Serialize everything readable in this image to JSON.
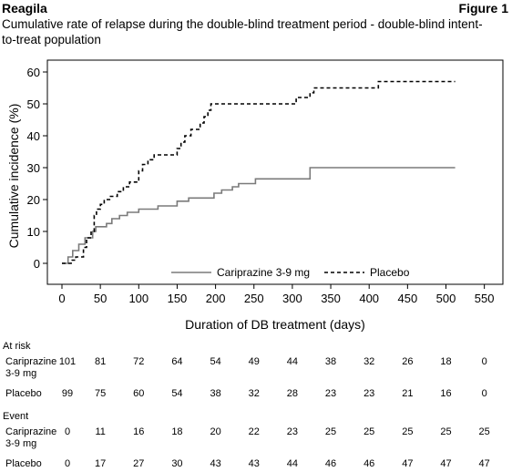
{
  "header": {
    "left": "Reagila",
    "right": "Figure 1"
  },
  "title": "Cumulative rate of relapse during the double-blind treatment period - double-blind intent-to-treat population",
  "chart_data": {
    "type": "line",
    "subtype": "step",
    "xlabel": "Duration of DB treatment (days)",
    "ylabel": "Cumulative incidence (%)",
    "xlim": [
      0,
      550
    ],
    "ylim": [
      0,
      60
    ],
    "xticks": [
      0,
      50,
      100,
      150,
      200,
      250,
      300,
      350,
      400,
      450,
      500,
      550
    ],
    "yticks": [
      0,
      10,
      20,
      30,
      40,
      50,
      60
    ],
    "legend_position": "bottom-right inside plot",
    "series": [
      {
        "name": "Cariprazine 3-9 mg",
        "style": "solid",
        "color": "#7a7a7a",
        "points": [
          [
            0,
            0
          ],
          [
            8,
            0
          ],
          [
            8,
            2
          ],
          [
            14,
            2
          ],
          [
            14,
            4
          ],
          [
            22,
            4
          ],
          [
            22,
            6
          ],
          [
            30,
            6
          ],
          [
            30,
            8
          ],
          [
            40,
            8
          ],
          [
            40,
            10
          ],
          [
            44,
            10
          ],
          [
            44,
            11.5
          ],
          [
            58,
            11.5
          ],
          [
            58,
            12.5
          ],
          [
            65,
            12.5
          ],
          [
            65,
            14
          ],
          [
            75,
            14
          ],
          [
            75,
            15
          ],
          [
            85,
            15
          ],
          [
            85,
            16
          ],
          [
            100,
            16
          ],
          [
            100,
            17
          ],
          [
            125,
            17
          ],
          [
            125,
            18
          ],
          [
            150,
            18
          ],
          [
            150,
            19.5
          ],
          [
            165,
            19.5
          ],
          [
            165,
            20.5
          ],
          [
            198,
            20.5
          ],
          [
            198,
            22
          ],
          [
            208,
            22
          ],
          [
            208,
            23
          ],
          [
            222,
            23
          ],
          [
            222,
            24
          ],
          [
            230,
            24
          ],
          [
            230,
            25
          ],
          [
            252,
            25
          ],
          [
            252,
            26.5
          ],
          [
            323,
            26.5
          ],
          [
            323,
            30
          ],
          [
            512,
            30
          ]
        ]
      },
      {
        "name": "Placebo",
        "style": "dashed",
        "color": "#000000",
        "points": [
          [
            0,
            0
          ],
          [
            12,
            0
          ],
          [
            12,
            1
          ],
          [
            18,
            1
          ],
          [
            18,
            2
          ],
          [
            28,
            2
          ],
          [
            28,
            5
          ],
          [
            32,
            5
          ],
          [
            32,
            8
          ],
          [
            38,
            8
          ],
          [
            38,
            10
          ],
          [
            42,
            10
          ],
          [
            42,
            15
          ],
          [
            45,
            15
          ],
          [
            45,
            17
          ],
          [
            50,
            17
          ],
          [
            50,
            18.5
          ],
          [
            55,
            18.5
          ],
          [
            55,
            20
          ],
          [
            62,
            20
          ],
          [
            62,
            21
          ],
          [
            72,
            21
          ],
          [
            72,
            22.5
          ],
          [
            80,
            22.5
          ],
          [
            80,
            24
          ],
          [
            88,
            24
          ],
          [
            88,
            25.5
          ],
          [
            100,
            25.5
          ],
          [
            100,
            29
          ],
          [
            105,
            29
          ],
          [
            105,
            31
          ],
          [
            112,
            31
          ],
          [
            112,
            32.5
          ],
          [
            120,
            32.5
          ],
          [
            120,
            34
          ],
          [
            150,
            34
          ],
          [
            150,
            36
          ],
          [
            155,
            36
          ],
          [
            155,
            38
          ],
          [
            160,
            38
          ],
          [
            160,
            40
          ],
          [
            168,
            40
          ],
          [
            168,
            42
          ],
          [
            180,
            42
          ],
          [
            180,
            44
          ],
          [
            185,
            44
          ],
          [
            185,
            46
          ],
          [
            190,
            46
          ],
          [
            190,
            48
          ],
          [
            194,
            48
          ],
          [
            194,
            50
          ],
          [
            305,
            50
          ],
          [
            305,
            52
          ],
          [
            323,
            52
          ],
          [
            323,
            53.5
          ],
          [
            328,
            53.5
          ],
          [
            328,
            55
          ],
          [
            412,
            55
          ],
          [
            412,
            57
          ],
          [
            512,
            57
          ]
        ]
      }
    ]
  },
  "risk_table": {
    "at_risk_label": "At risk",
    "event_label": "Event",
    "at_risk": [
      {
        "label_lines": [
          "Cariprazine",
          "3-9 mg"
        ],
        "values": [
          "101",
          "81",
          "72",
          "64",
          "54",
          "49",
          "44",
          "38",
          "32",
          "26",
          "18",
          "0"
        ]
      },
      {
        "label_lines": [
          "Placebo"
        ],
        "values": [
          "99",
          "75",
          "60",
          "54",
          "38",
          "32",
          "28",
          "23",
          "23",
          "21",
          "16",
          "0"
        ]
      }
    ],
    "event": [
      {
        "label_lines": [
          "Cariprazine",
          "3-9 mg"
        ],
        "values": [
          "0",
          "11",
          "16",
          "18",
          "20",
          "22",
          "23",
          "25",
          "25",
          "25",
          "25",
          "25"
        ]
      },
      {
        "label_lines": [
          "Placebo"
        ],
        "values": [
          "0",
          "17",
          "27",
          "30",
          "43",
          "43",
          "44",
          "46",
          "46",
          "47",
          "47",
          "47"
        ]
      }
    ]
  }
}
